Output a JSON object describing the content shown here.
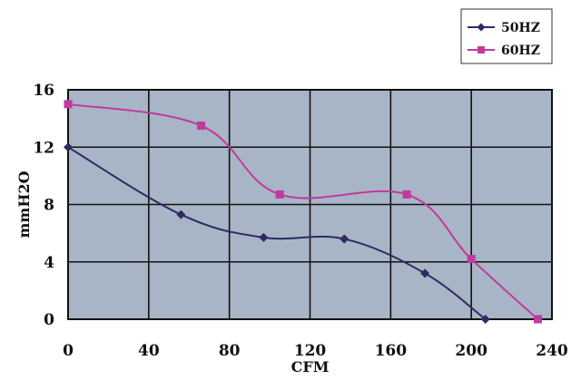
{
  "chart_data": {
    "type": "line",
    "xlabel": "CFM",
    "ylabel": "mmH2O",
    "xlim": [
      0,
      240
    ],
    "ylim": [
      0,
      16
    ],
    "x_ticks": [
      "0",
      "40",
      "80",
      "120",
      "160",
      "200",
      "240"
    ],
    "y_ticks": [
      "0",
      "4",
      "8",
      "12",
      "16"
    ],
    "grid": true,
    "legend_position": "top-right",
    "plot_background": "#a8b5c7",
    "series": [
      {
        "name": "50HZ",
        "color": "#2e2b63",
        "marker": "diamond",
        "points": [
          [
            0,
            12.0
          ],
          [
            56,
            7.3
          ],
          [
            97,
            5.7
          ],
          [
            137,
            5.6
          ],
          [
            177,
            3.2
          ],
          [
            207,
            0.0
          ]
        ]
      },
      {
        "name": "60HZ",
        "color": "#c13a9c",
        "marker": "square",
        "points": [
          [
            0,
            15.0
          ],
          [
            66,
            13.5
          ],
          [
            105,
            8.7
          ],
          [
            168,
            8.7
          ],
          [
            200,
            4.2
          ],
          [
            233,
            0.0
          ]
        ]
      }
    ]
  }
}
